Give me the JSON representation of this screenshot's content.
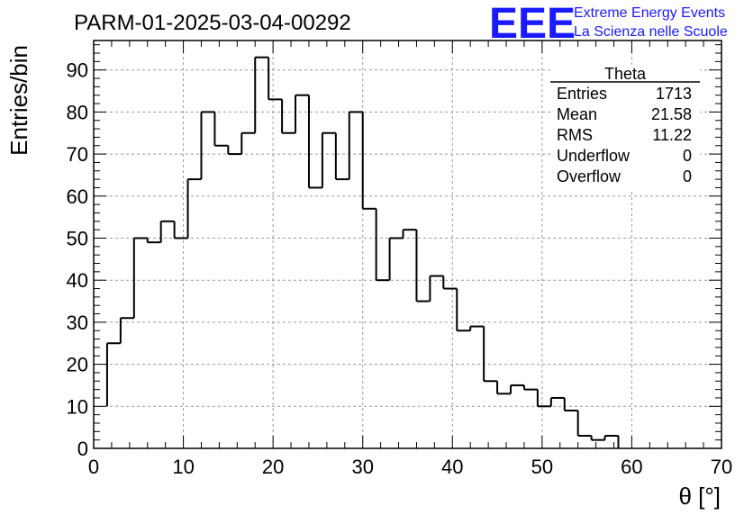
{
  "header": {
    "title": "PARM-01-2025-03-04-00292",
    "logo_text": "EEE",
    "logo_line1": "Extreme Energy Events",
    "logo_line2": "La Scienza nelle Scuole",
    "logo_color": "#1a1aff"
  },
  "stats": {
    "title": "Theta",
    "rows": [
      {
        "label": "Entries",
        "value": "1713"
      },
      {
        "label": "Mean",
        "value": "21.58"
      },
      {
        "label": "RMS",
        "value": "11.22"
      },
      {
        "label": "Underflow",
        "value": "0"
      },
      {
        "label": "Overflow",
        "value": "0"
      }
    ]
  },
  "chart_data": {
    "type": "histogram",
    "title": "PARM-01-2025-03-04-00292",
    "xlabel": "θ [°]",
    "ylabel": "Entries/bin",
    "xlim": [
      0,
      70
    ],
    "ylim": [
      0,
      97
    ],
    "bin_width": 1.5,
    "x_start": 1.5,
    "values": [
      25,
      31,
      50,
      49,
      54,
      50,
      64,
      80,
      72,
      70,
      75,
      93,
      83,
      75,
      84,
      62,
      75,
      64,
      80,
      57,
      40,
      50,
      52,
      35,
      41,
      38,
      28,
      29,
      16,
      13,
      15,
      14,
      10,
      12,
      9,
      3,
      2,
      3
    ],
    "x_ticks": [
      0,
      10,
      20,
      30,
      40,
      50,
      60,
      70
    ],
    "y_ticks": [
      0,
      10,
      20,
      30,
      40,
      50,
      60,
      70,
      80,
      90
    ],
    "grid": true,
    "line_color": "#000000"
  }
}
